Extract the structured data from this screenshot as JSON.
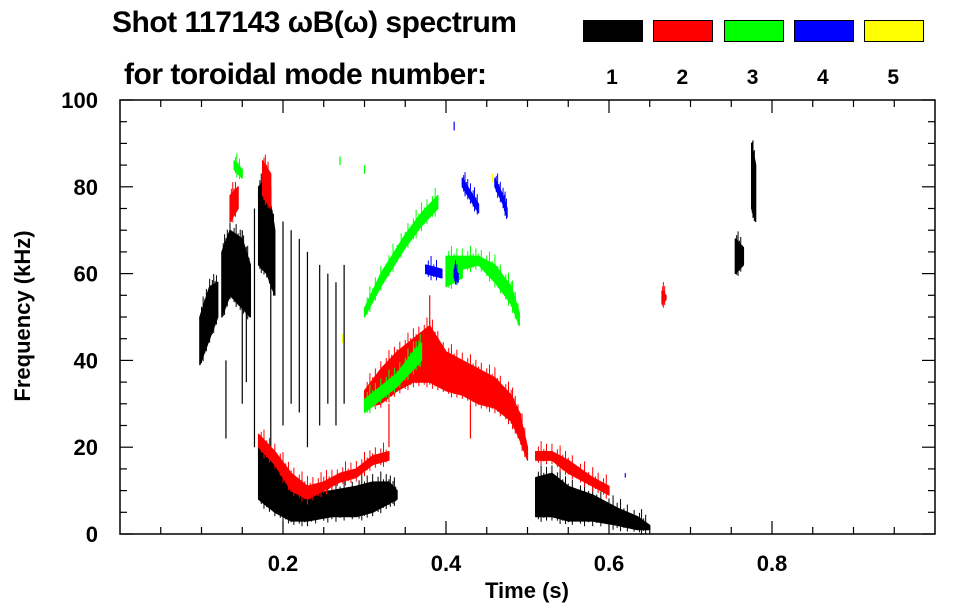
{
  "chart_data": {
    "type": "heatmap",
    "title": "Shot 117143 ωB(ω) spectrum",
    "subtitle": "for toroidal mode number:",
    "xlabel": "Time (s)",
    "ylabel": "Frequency (kHz)",
    "xlim": [
      0,
      1.0
    ],
    "ylim": [
      0,
      100
    ],
    "xticks": [
      {
        "v": 0.2,
        "label": "0.2"
      },
      {
        "v": 0.4,
        "label": "0.4"
      },
      {
        "v": 0.6,
        "label": "0.6"
      },
      {
        "v": 0.8,
        "label": "0.8"
      }
    ],
    "yticks": [
      {
        "v": 0,
        "label": "0"
      },
      {
        "v": 20,
        "label": "20"
      },
      {
        "v": 40,
        "label": "40"
      },
      {
        "v": 60,
        "label": "60"
      },
      {
        "v": 80,
        "label": "80"
      },
      {
        "v": 100,
        "label": "100"
      }
    ],
    "legend": [
      {
        "mode": "1",
        "color": "#000000"
      },
      {
        "mode": "2",
        "color": "#ff0000"
      },
      {
        "mode": "3",
        "color": "#00ff00"
      },
      {
        "mode": "4",
        "color": "#0000ff"
      },
      {
        "mode": "5",
        "color": "#ffff00"
      }
    ],
    "series": [
      {
        "name": "n=1",
        "color": "#000000",
        "bands": [
          [
            [
              0.17,
              8,
              22
            ],
            [
              0.19,
              5,
              16
            ],
            [
              0.21,
              3,
              12
            ],
            [
              0.23,
              3,
              9
            ],
            [
              0.26,
              4,
              10
            ],
            [
              0.29,
              4,
              11
            ],
            [
              0.31,
              5,
              12
            ],
            [
              0.33,
              7,
              12
            ],
            [
              0.34,
              8,
              10
            ]
          ],
          [
            [
              0.51,
              4,
              13
            ],
            [
              0.53,
              4,
              14
            ],
            [
              0.55,
              3,
              11
            ],
            [
              0.58,
              3,
              9
            ],
            [
              0.61,
              2,
              6
            ],
            [
              0.635,
              1,
              4
            ],
            [
              0.65,
              1,
              2
            ]
          ],
          [
            [
              0.098,
              39,
              50
            ],
            [
              0.11,
              45,
              57
            ],
            [
              0.12,
              50,
              58
            ]
          ],
          [
            [
              0.125,
              50,
              65
            ],
            [
              0.135,
              55,
              70
            ],
            [
              0.15,
              52,
              68
            ],
            [
              0.16,
              50,
              62
            ]
          ],
          [
            [
              0.17,
              62,
              80
            ],
            [
              0.18,
              60,
              82
            ],
            [
              0.19,
              55,
              70
            ]
          ],
          [
            [
              0.755,
              60,
              68
            ],
            [
              0.765,
              62,
              66
            ]
          ],
          [
            [
              0.775,
              75,
              90
            ],
            [
              0.78,
              72,
              85
            ]
          ]
        ],
        "lines": [
          [
            0.15,
            30,
            70
          ],
          [
            0.165,
            20,
            75
          ],
          [
            0.185,
            20,
            80
          ],
          [
            0.2,
            25,
            72
          ],
          [
            0.21,
            30,
            70
          ],
          [
            0.22,
            28,
            68
          ],
          [
            0.23,
            20,
            65
          ],
          [
            0.245,
            25,
            62
          ],
          [
            0.255,
            30,
            60
          ],
          [
            0.265,
            25,
            58
          ],
          [
            0.275,
            30,
            62
          ],
          [
            0.13,
            22,
            40
          ],
          [
            0.155,
            35,
            65
          ]
        ]
      },
      {
        "name": "n=2",
        "color": "#ff0000",
        "bands": [
          [
            [
              0.17,
              20,
              23
            ],
            [
              0.19,
              16,
              19
            ],
            [
              0.21,
              10,
              14
            ],
            [
              0.23,
              8,
              11
            ],
            [
              0.25,
              10,
              12
            ],
            [
              0.27,
              12,
              14
            ],
            [
              0.29,
              13,
              15
            ],
            [
              0.31,
              16,
              18
            ],
            [
              0.33,
              17,
              19
            ]
          ],
          [
            [
              0.3,
              29,
              33
            ],
            [
              0.32,
              30,
              38
            ],
            [
              0.34,
              33,
              42
            ],
            [
              0.36,
              35,
              45
            ],
            [
              0.38,
              35,
              48
            ],
            [
              0.4,
              33,
              42
            ],
            [
              0.42,
              32,
              40
            ],
            [
              0.44,
              30,
              38
            ],
            [
              0.46,
              29,
              36
            ],
            [
              0.48,
              26,
              32
            ],
            [
              0.49,
              22,
              28
            ],
            [
              0.5,
              17,
              20
            ]
          ],
          [
            [
              0.51,
              17,
              19
            ],
            [
              0.53,
              17,
              19
            ],
            [
              0.55,
              14,
              17
            ],
            [
              0.58,
              11,
              13
            ],
            [
              0.6,
              9,
              11
            ]
          ],
          [
            [
              0.135,
              72,
              78
            ],
            [
              0.145,
              75,
              80
            ]
          ],
          [
            [
              0.175,
              78,
              86
            ],
            [
              0.185,
              75,
              83
            ]
          ],
          [
            [
              0.665,
              53,
              56
            ],
            [
              0.67,
              54,
              55
            ]
          ]
        ],
        "lines": [
          [
            0.38,
            40,
            55
          ],
          [
            0.33,
            20,
            30
          ],
          [
            0.43,
            22,
            30
          ]
        ]
      },
      {
        "name": "n=3",
        "color": "#00ff00",
        "bands": [
          [
            [
              0.3,
              28,
              31
            ],
            [
              0.32,
              31,
              34
            ],
            [
              0.34,
              34,
              37
            ],
            [
              0.36,
              38,
              42
            ],
            [
              0.37,
              40,
              44
            ]
          ],
          [
            [
              0.3,
              50,
              52
            ],
            [
              0.32,
              57,
              60
            ],
            [
              0.35,
              66,
              69
            ],
            [
              0.37,
              71,
              74
            ],
            [
              0.39,
              75,
              78
            ]
          ],
          [
            [
              0.4,
              60,
              64
            ],
            [
              0.42,
              61,
              64
            ],
            [
              0.44,
              62,
              64
            ],
            [
              0.46,
              58,
              62
            ],
            [
              0.48,
              53,
              57
            ],
            [
              0.49,
              48,
              51
            ]
          ],
          [
            [
              0.4,
              57,
              60
            ],
            [
              0.42,
              59,
              62
            ]
          ],
          [
            [
              0.14,
              84,
              86
            ],
            [
              0.15,
              82,
              84
            ]
          ]
        ],
        "lines": [
          [
            0.3,
            83,
            85
          ],
          [
            0.27,
            85,
            87
          ]
        ]
      },
      {
        "name": "n=4",
        "color": "#0000ff",
        "bands": [
          [
            [
              0.42,
              80,
              82
            ],
            [
              0.43,
              77,
              79
            ],
            [
              0.44,
              74,
              76
            ]
          ],
          [
            [
              0.46,
              80,
              82
            ],
            [
              0.47,
              76,
              78
            ],
            [
              0.475,
              73,
              75
            ]
          ],
          [
            [
              0.375,
              60,
              62
            ],
            [
              0.395,
              59,
              61
            ]
          ],
          [
            [
              0.41,
              59,
              61
            ],
            [
              0.415,
              58,
              60
            ]
          ]
        ],
        "lines": [
          [
            0.62,
            13,
            14
          ],
          [
            0.41,
            93,
            95
          ]
        ]
      },
      {
        "name": "n=5",
        "color": "#ffff00",
        "bands": [],
        "lines": [
          [
            0.273,
            44,
            46
          ],
          [
            0.457,
            81,
            83
          ]
        ]
      }
    ]
  }
}
